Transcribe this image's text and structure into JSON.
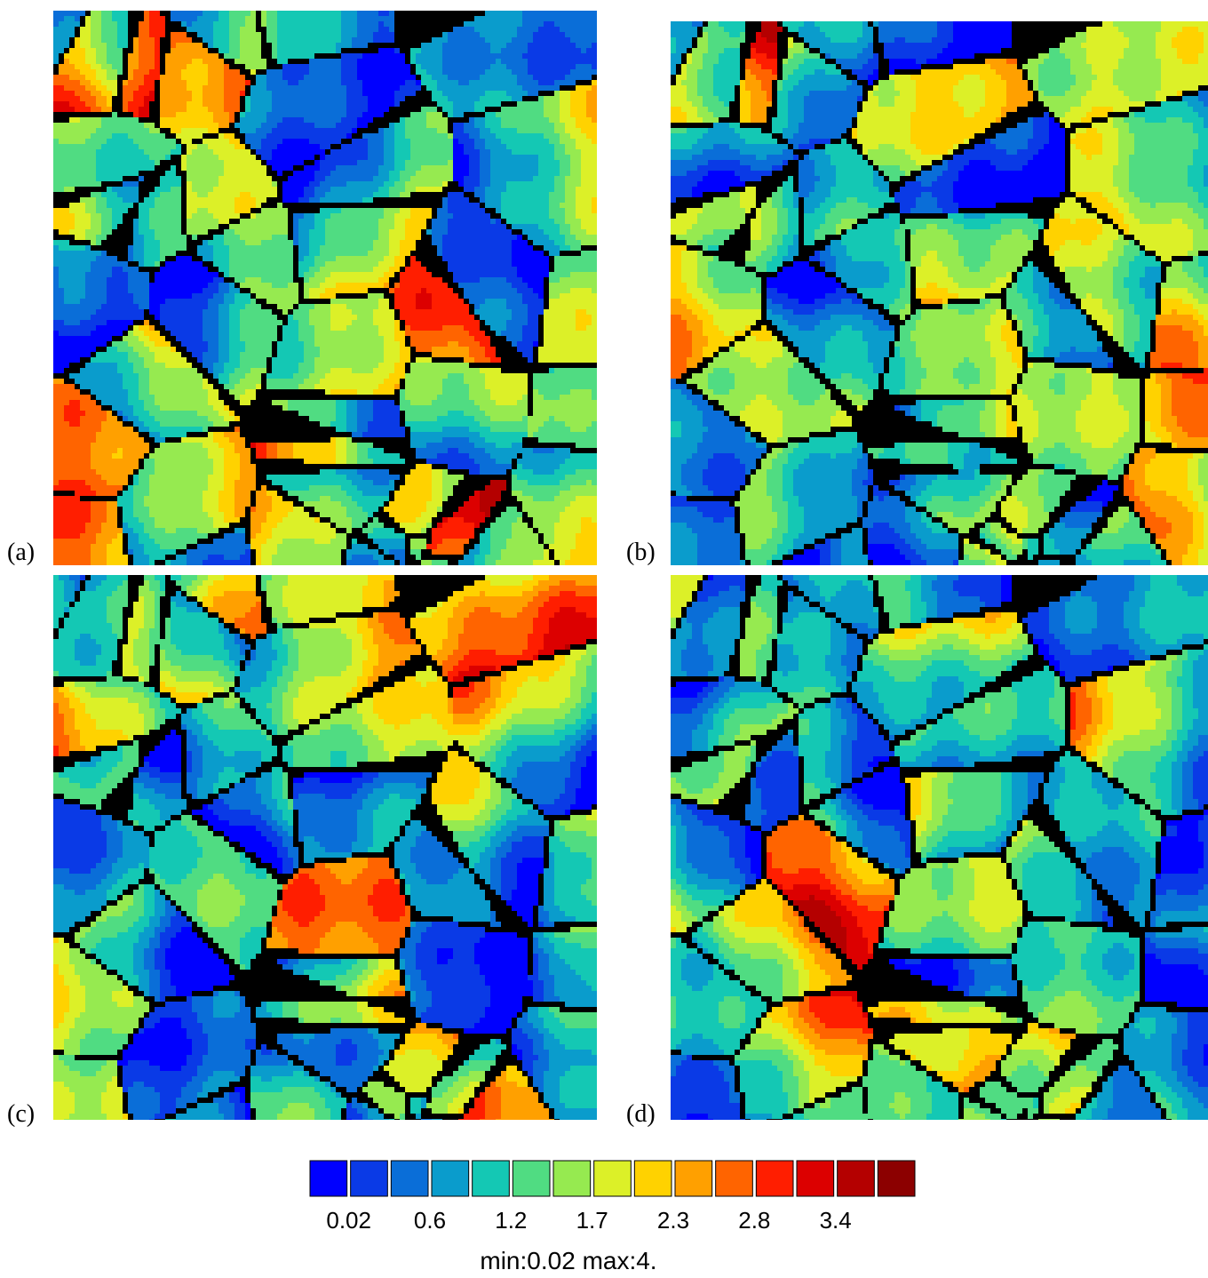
{
  "panels": [
    {
      "label": "(a)"
    },
    {
      "label": "(b)"
    },
    {
      "label": "(c)"
    },
    {
      "label": "(d)"
    }
  ],
  "colorbar": {
    "colors": [
      "#0000ff",
      "#0a3ae6",
      "#0a6ed8",
      "#0a9ccc",
      "#14c8b4",
      "#50dc82",
      "#96ea50",
      "#dcf028",
      "#ffd200",
      "#ffa000",
      "#ff6400",
      "#ff1e00",
      "#dc0000",
      "#b40000",
      "#8c0000"
    ],
    "tick_labels": [
      "0.02",
      "0.6",
      "1.2",
      "1.7",
      "2.3",
      "2.8",
      "3.4"
    ],
    "caption": "min:0.02 max:4."
  }
}
